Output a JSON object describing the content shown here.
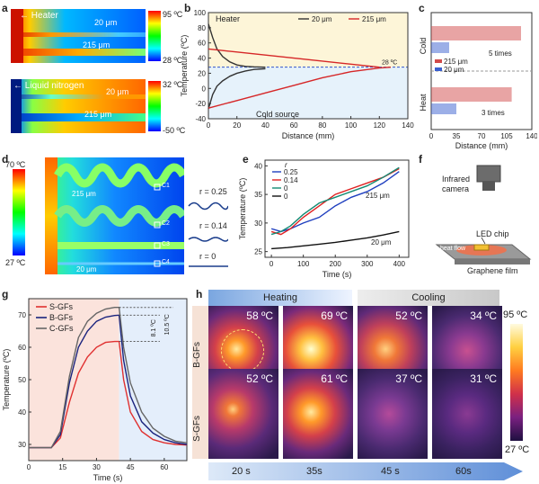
{
  "panels": {
    "a": {
      "label": "a",
      "heater_label": "Heater",
      "ln2_label": "Liquid nitrogen",
      "width_20": "20 μm",
      "width_215": "215 μm",
      "scale_top_max": "95 ºC",
      "scale_top_min": "28 ºC",
      "scale_bottom_max": "32 ºC",
      "scale_bottom_min": "-50 ºC"
    },
    "b": {
      "label": "b",
      "heater_text": "Heater",
      "cold_text": "Cold source",
      "ambient_text": "28 ºC",
      "chart_data": {
        "type": "line",
        "xlabel": "Distance (mm)",
        "ylabel": "Temperature (ºC)",
        "xlim": [
          0,
          140
        ],
        "ylim": [
          -40,
          100
        ],
        "xticks": [
          "0",
          "20",
          "40",
          "60",
          "80",
          "100",
          "120",
          "140"
        ],
        "yticks": [
          "-40",
          "-20",
          "0",
          "20",
          "40",
          "60",
          "80",
          "100"
        ],
        "legend": [
          "20 μm",
          "215 μm"
        ],
        "series": [
          {
            "name": "20 μm (heater)",
            "color": "#333333",
            "x": [
              0,
              3,
              6,
              10,
              15,
              20,
              26,
              32,
              40
            ],
            "y": [
              85,
              67,
              52,
              42,
              35,
              31,
              29,
              28.4,
              28
            ]
          },
          {
            "name": "215 μm (heater)",
            "color": "#d62728",
            "x": [
              0,
              20,
              40,
              60,
              80,
              100,
              120
            ],
            "y": [
              52,
              48,
              44,
              40,
              36,
              32,
              28
            ]
          },
          {
            "name": "20 μm (cold)",
            "color": "#333333",
            "x": [
              0,
              3,
              6,
              10,
              15,
              20,
              26,
              32,
              40
            ],
            "y": [
              -27,
              -8,
              3,
              10,
              16,
              20,
              23,
              25,
              26
            ]
          },
          {
            "name": "215 μm (cold)",
            "color": "#d62728",
            "x": [
              0,
              20,
              40,
              60,
              80,
              100,
              120,
              128
            ],
            "y": [
              -26,
              -16,
              -6,
              4,
              14,
              22,
              27,
              28
            ]
          }
        ]
      }
    },
    "c": {
      "label": "c",
      "cold_label": "Cold",
      "heat_label": "Heat",
      "legend_215": "215 μm",
      "legend_20": "20 μm",
      "cold_ratio": "5 times",
      "heat_ratio": "3 times",
      "xlabel": "Distance (mm)",
      "xticks": [
        "0",
        "35",
        "70",
        "105",
        "140"
      ],
      "chart_data": {
        "type": "bar",
        "categories": [
          "Cold",
          "Heat"
        ],
        "series": [
          {
            "name": "215 μm",
            "values": [
              125,
              112
            ]
          },
          {
            "name": "20 μm",
            "values": [
              25,
              35
            ]
          }
        ]
      }
    },
    "d": {
      "label": "d",
      "scale_max": "70 ºC",
      "scale_min": "27 ºC",
      "w215": "215 μm",
      "w20": "20 μm",
      "r1": "r = 0.25",
      "r2": "r = 0.14",
      "r3": "r = 0",
      "boxes": [
        "C1",
        "C2",
        "C3",
        "C4"
      ]
    },
    "e": {
      "label": "e",
      "legend_title": "r",
      "note_215": "215 μm",
      "note_20": "20 μm",
      "chart_data": {
        "type": "line",
        "xlabel": "Time (s)",
        "ylabel": "Temperature (ºC)",
        "xlim": [
          -20,
          430
        ],
        "ylim": [
          24,
          41
        ],
        "xticks": [
          "0",
          "100",
          "200",
          "300",
          "400"
        ],
        "yticks": [
          "25",
          "30",
          "35",
          "40"
        ],
        "series": [
          {
            "name": "0.25",
            "color": "#1f3fbf",
            "x": [
              0,
              30,
              60,
              100,
              150,
              200,
              250,
              300,
              350,
              400
            ],
            "y": [
              29,
              28.5,
              29,
              30,
              31,
              33,
              34.5,
              35.5,
              37,
              39
            ]
          },
          {
            "name": "0.14",
            "color": "#e02020",
            "x": [
              0,
              30,
              60,
              100,
              150,
              200,
              250,
              300,
              350,
              400
            ],
            "y": [
              28.5,
              28,
              29,
              31,
              33,
              35,
              36,
              37,
              38,
              39.5
            ]
          },
          {
            "name": "0",
            "color": "#138a73",
            "x": [
              0,
              30,
              60,
              100,
              150,
              200,
              250,
              300,
              350,
              400
            ],
            "y": [
              28,
              28.5,
              29.5,
              31.5,
              33.5,
              34.5,
              35.5,
              36.5,
              38,
              39.7
            ]
          },
          {
            "name": "0",
            "color": "#111111",
            "x": [
              0,
              50,
              100,
              150,
              200,
              250,
              300,
              350,
              400
            ],
            "y": [
              25.5,
              25.7,
              26,
              26.3,
              26.6,
              27,
              27.4,
              27.9,
              28.5
            ]
          }
        ]
      }
    },
    "f": {
      "label": "f",
      "camera": "Infrared\ncamera",
      "led": "LED chip",
      "flow": "heat flow",
      "film": "Graphene film"
    },
    "g": {
      "label": "g",
      "delta1": "8.1 ºC",
      "delta2": "10.5 ºC",
      "chart_data": {
        "type": "line",
        "xlabel": "Time (s)",
        "ylabel": "Temperature (ºC)",
        "xlim": [
          0,
          70
        ],
        "ylim": [
          25,
          75
        ],
        "xticks": [
          "0",
          "15",
          "30",
          "45",
          "60"
        ],
        "yticks": [
          "30",
          "40",
          "50",
          "60",
          "70"
        ],
        "series": [
          {
            "name": "S-GFs",
            "color": "#e03030",
            "x": [
              0,
              10,
              14,
              18,
              22,
              26,
              30,
              34,
              38,
              40,
              42,
              45,
              50,
              55,
              60,
              65,
              70
            ],
            "y": [
              29,
              29,
              32,
              43,
              52,
              57,
              60,
              61.5,
              61.8,
              61.8,
              50,
              40,
              34,
              31.5,
              30.5,
              30,
              29.8
            ]
          },
          {
            "name": "B-GFs",
            "color": "#1a237e",
            "x": [
              0,
              10,
              14,
              18,
              22,
              26,
              30,
              34,
              38,
              40,
              42,
              45,
              50,
              55,
              60,
              65,
              70
            ],
            "y": [
              29,
              29,
              33,
              49,
              60,
              65,
              68,
              69.3,
              69.8,
              69.9,
              56,
              45,
              37,
              33.5,
              31.5,
              30.5,
              30
            ]
          },
          {
            "name": "C-GFs",
            "color": "#666666",
            "x": [
              0,
              10,
              14,
              18,
              22,
              26,
              30,
              34,
              38,
              40,
              42,
              45,
              50,
              55,
              60,
              65,
              70
            ],
            "y": [
              29,
              29,
              34,
              51,
              63,
              68,
              70.5,
              71.8,
              72.3,
              72.3,
              60,
              49,
              40,
              35,
              32.5,
              31,
              30.5
            ]
          }
        ]
      }
    },
    "h": {
      "label": "h",
      "heating": "Heating",
      "cooling": "Cooling",
      "row_labels": [
        "B-GFs",
        "S-GFs"
      ],
      "b_temps": [
        "58 ºC",
        "69 ºC",
        "52 ºC",
        "34 ºC"
      ],
      "s_temps": [
        "52 ºC",
        "61 ºC",
        "37 ºC",
        "31 ºC"
      ],
      "times": [
        "20 s",
        "35s",
        "45 s",
        "60s"
      ],
      "scale_max": "95 ºC",
      "scale_min": "27 ºC"
    }
  }
}
